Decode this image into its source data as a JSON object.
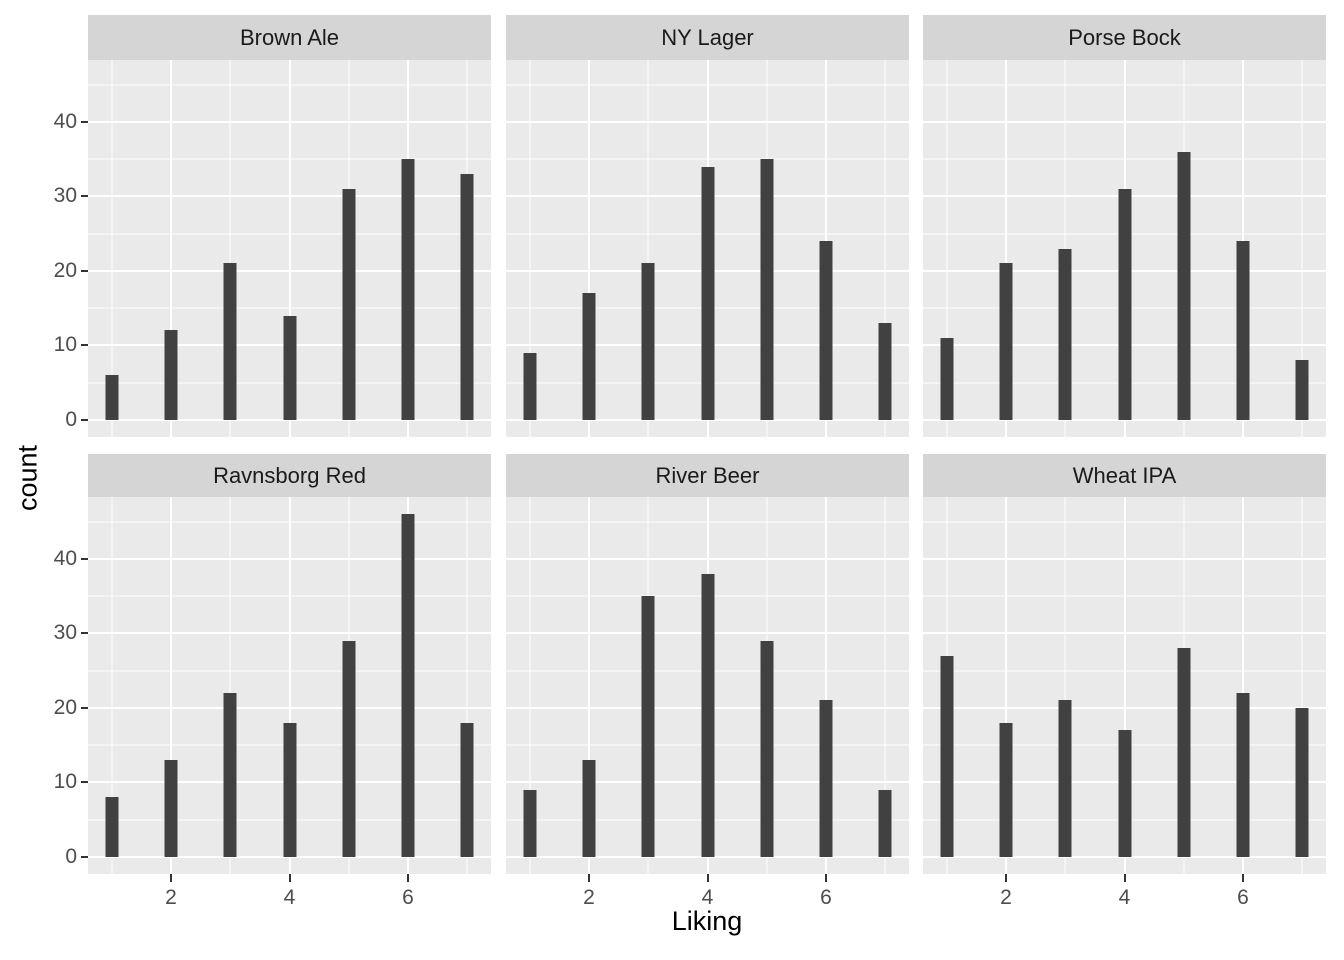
{
  "chart_data": {
    "type": "bar",
    "faceted": true,
    "title": "",
    "xlabel": "Liking",
    "ylabel": "count",
    "x": [
      1,
      2,
      3,
      4,
      5,
      6,
      7
    ],
    "x_ticks": [
      2,
      4,
      6
    ],
    "y_ticks": [
      0,
      10,
      20,
      30,
      40
    ],
    "y_minor_ticks": [
      5,
      15,
      25,
      35,
      45
    ],
    "xlim": [
      0.6,
      7.4
    ],
    "ylim": [
      -2.3,
      48.3
    ],
    "grid": true,
    "legend_position": "none",
    "facets": [
      {
        "title": "Brown Ale",
        "values": [
          6,
          12,
          21,
          14,
          31,
          35,
          33
        ]
      },
      {
        "title": "NY Lager",
        "values": [
          9,
          17,
          21,
          34,
          35,
          24,
          13
        ]
      },
      {
        "title": "Porse Bock",
        "values": [
          11,
          21,
          23,
          31,
          36,
          24,
          8
        ]
      },
      {
        "title": "Ravnsborg Red",
        "values": [
          8,
          13,
          22,
          18,
          29,
          46,
          18
        ]
      },
      {
        "title": "River Beer",
        "values": [
          9,
          13,
          35,
          38,
          29,
          21,
          9
        ]
      },
      {
        "title": "Wheat IPA",
        "values": [
          27,
          18,
          21,
          17,
          28,
          22,
          20
        ]
      }
    ],
    "colors": {
      "bar": "#414141",
      "panel_bg": "#EAEAEA",
      "strip_bg": "#D5D5D5",
      "gridline": "#FFFFFF",
      "tick_text": "#4D4D4D",
      "strip_text": "#1A1A1A",
      "axis_title_text": "#000000",
      "tick_mark": "#333333"
    }
  }
}
